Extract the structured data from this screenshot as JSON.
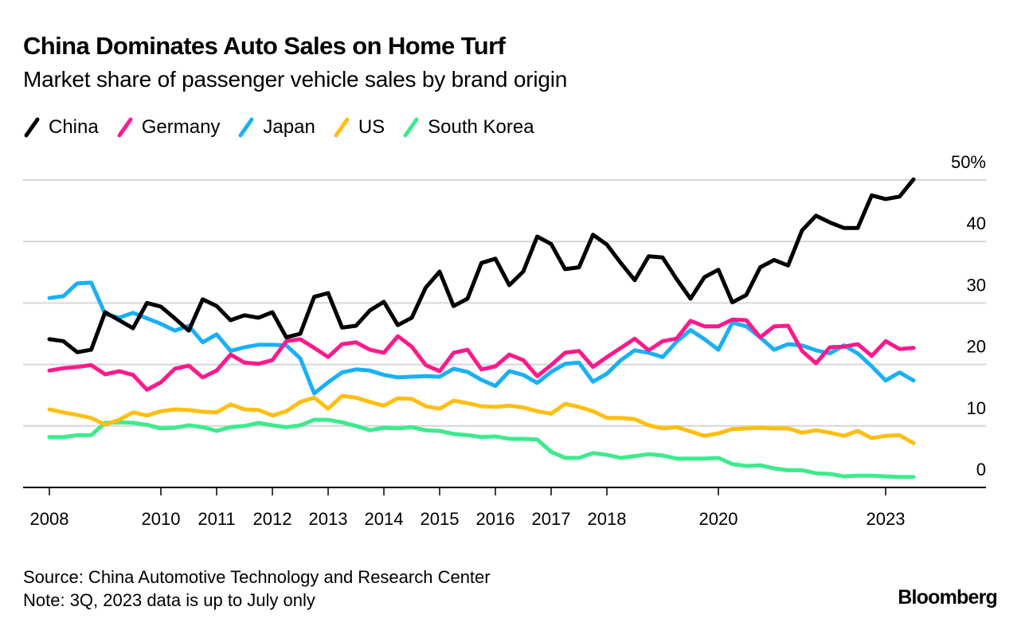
{
  "header": {
    "title": "China Dominates Auto Sales on Home Turf",
    "subtitle": "Market share of passenger vehicle sales by brand origin"
  },
  "legend": [
    {
      "label": "China",
      "color": "#000000"
    },
    {
      "label": "Germany",
      "color": "#ff1a8c"
    },
    {
      "label": "Japan",
      "color": "#19b0f5"
    },
    {
      "label": "US",
      "color": "#ffbf12"
    },
    {
      "label": "South Korea",
      "color": "#3deb8c"
    }
  ],
  "footer": {
    "source": "Source: China Automotive Technology and Research Center",
    "note": "Note: 3Q, 2023 data is up to July only",
    "brand": "Bloomberg"
  },
  "chart_data": {
    "type": "line",
    "title": "China Dominates Auto Sales on Home Turf",
    "subtitle": "Market share of passenger vehicle sales by brand origin",
    "xlabel": "",
    "ylabel": "",
    "x_unit": "quarter",
    "x_start": "2008Q1",
    "x_end": "2023Q3",
    "x_ticks": [
      {
        "label": "2008",
        "year": 2008
      },
      {
        "label": "2010",
        "year": 2010
      },
      {
        "label": "2011",
        "year": 2011
      },
      {
        "label": "2012",
        "year": 2012
      },
      {
        "label": "2013",
        "year": 2013
      },
      {
        "label": "2014",
        "year": 2014
      },
      {
        "label": "2015",
        "year": 2015
      },
      {
        "label": "2016",
        "year": 2016
      },
      {
        "label": "2017",
        "year": 2017
      },
      {
        "label": "2018",
        "year": 2018
      },
      {
        "label": "2020",
        "year": 2020
      },
      {
        "label": "2023",
        "year": 2023
      }
    ],
    "y_ticks": [
      {
        "value": 50,
        "label": "50%"
      },
      {
        "value": 40,
        "label": "40"
      },
      {
        "value": 30,
        "label": "30"
      },
      {
        "value": 20,
        "label": "20"
      },
      {
        "value": 10,
        "label": "10"
      },
      {
        "value": 0,
        "label": "0"
      }
    ],
    "ylim": [
      0,
      50
    ],
    "grid": true,
    "legend_position": "top-left",
    "series": [
      {
        "name": "China",
        "color": "#000000",
        "values": [
          24.1,
          23.8,
          22.0,
          22.4,
          28.5,
          27.2,
          25.9,
          30.0,
          29.4,
          27.5,
          25.5,
          30.6,
          29.5,
          27.2,
          28.0,
          27.6,
          28.5,
          24.4,
          25.0,
          31.0,
          31.6,
          26.0,
          26.3,
          28.8,
          30.2,
          26.4,
          27.6,
          32.5,
          35.1,
          29.5,
          30.7,
          36.5,
          37.2,
          32.9,
          35.1,
          40.8,
          39.6,
          35.5,
          35.8,
          41.1,
          39.5,
          36.5,
          33.7,
          37.6,
          37.4,
          33.9,
          30.7,
          34.2,
          35.4,
          30.1,
          31.3,
          35.8,
          37.0,
          36.1,
          41.8,
          44.2,
          43.1,
          42.2,
          42.2,
          47.5,
          46.9,
          47.3,
          50.1
        ]
      },
      {
        "name": "Germany",
        "color": "#ff1a8c",
        "values": [
          19.0,
          19.4,
          19.6,
          19.9,
          18.4,
          18.9,
          18.3,
          15.9,
          17.1,
          19.3,
          19.8,
          17.9,
          19.0,
          21.6,
          20.3,
          20.1,
          20.7,
          23.8,
          24.1,
          22.7,
          21.2,
          23.3,
          23.6,
          22.4,
          21.9,
          24.6,
          22.9,
          19.9,
          18.9,
          21.9,
          22.4,
          19.2,
          19.7,
          21.6,
          20.7,
          18.1,
          19.9,
          21.9,
          22.2,
          19.6,
          21.2,
          22.7,
          24.2,
          22.3,
          23.8,
          24.2,
          27.1,
          26.2,
          26.2,
          27.3,
          27.2,
          24.4,
          26.2,
          26.3,
          22.2,
          20.2,
          22.8,
          22.9,
          23.3,
          21.4,
          23.8,
          22.5,
          22.7
        ]
      },
      {
        "name": "Japan",
        "color": "#19b0f5",
        "values": [
          30.8,
          31.1,
          33.2,
          33.3,
          28.2,
          27.6,
          28.4,
          27.5,
          26.6,
          25.5,
          26.3,
          23.6,
          24.9,
          22.2,
          22.8,
          23.2,
          23.2,
          23.1,
          21.0,
          15.3,
          17.1,
          18.7,
          19.2,
          19.0,
          18.3,
          17.9,
          18.0,
          18.1,
          18.0,
          19.3,
          18.8,
          17.5,
          16.5,
          18.9,
          18.3,
          17.0,
          18.8,
          20.1,
          20.3,
          17.2,
          18.5,
          20.7,
          22.3,
          21.9,
          21.2,
          23.7,
          25.6,
          24.1,
          22.4,
          26.8,
          26.2,
          24.4,
          22.4,
          23.3,
          23.1,
          22.3,
          21.8,
          23.1,
          21.8,
          19.7,
          17.4,
          18.7,
          17.4
        ]
      },
      {
        "name": "US",
        "color": "#ffbf12",
        "values": [
          12.7,
          12.2,
          11.8,
          11.3,
          10.2,
          11.0,
          12.2,
          11.7,
          12.4,
          12.7,
          12.6,
          12.3,
          12.2,
          13.5,
          12.7,
          12.6,
          11.7,
          12.4,
          13.9,
          14.6,
          12.8,
          14.9,
          14.6,
          13.9,
          13.3,
          14.5,
          14.4,
          13.2,
          12.8,
          14.1,
          13.7,
          13.2,
          13.1,
          13.3,
          13.0,
          12.4,
          12.0,
          13.6,
          13.1,
          12.4,
          11.3,
          11.3,
          11.1,
          10.1,
          9.6,
          9.8,
          9.1,
          8.4,
          8.8,
          9.5,
          9.6,
          9.7,
          9.6,
          9.6,
          8.9,
          9.3,
          8.9,
          8.4,
          9.2,
          8.0,
          8.4,
          8.5,
          7.2
        ]
      },
      {
        "name": "South Korea",
        "color": "#3deb8c",
        "values": [
          8.2,
          8.2,
          8.5,
          8.5,
          10.5,
          10.6,
          10.5,
          10.2,
          9.6,
          9.7,
          10.1,
          9.8,
          9.2,
          9.8,
          10.0,
          10.5,
          10.1,
          9.8,
          10.1,
          11.0,
          11.0,
          10.6,
          10.0,
          9.3,
          9.7,
          9.6,
          9.8,
          9.3,
          9.2,
          8.7,
          8.5,
          8.2,
          8.3,
          7.9,
          7.9,
          7.8,
          5.8,
          4.8,
          4.8,
          5.6,
          5.3,
          4.8,
          5.1,
          5.4,
          5.2,
          4.7,
          4.7,
          4.7,
          4.8,
          3.8,
          3.5,
          3.6,
          3.1,
          2.8,
          2.8,
          2.3,
          2.2,
          1.8,
          1.9,
          1.9,
          1.8,
          1.7,
          1.7
        ]
      }
    ]
  }
}
